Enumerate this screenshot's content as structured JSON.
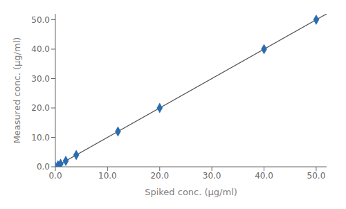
{
  "chart_data": {
    "type": "scatter",
    "xlabel": "Spiked conc. (μg/ml)",
    "ylabel": "Measured conc. (μg/ml)",
    "series": [
      {
        "type": "line",
        "color": "#555555",
        "x": [
          0.0,
          52.0
        ],
        "values": [
          0.0,
          52.0
        ]
      },
      {
        "type": "scatter",
        "color": "#2b6cb0",
        "marker": "diamond",
        "x": [
          0.0,
          0.5,
          1.0,
          2.0,
          4.0,
          12.0,
          20.0,
          40.0,
          50.0
        ],
        "values": [
          0.0,
          0.5,
          1.0,
          2.0,
          4.0,
          12.0,
          20.0,
          40.0,
          50.0
        ]
      }
    ],
    "xlim": [
      0.0,
      52.0
    ],
    "ylim": [
      0.0,
      52.0
    ],
    "xticks": [
      {
        "value": 0,
        "label": "0.0"
      },
      {
        "value": 10,
        "label": "10.0"
      },
      {
        "value": 20,
        "label": "20.0"
      },
      {
        "value": 30,
        "label": "30.0"
      },
      {
        "value": 40,
        "label": "40.0"
      },
      {
        "value": 50,
        "label": "50.0"
      }
    ],
    "yticks": [
      {
        "value": 0,
        "label": "0.0"
      },
      {
        "value": 10,
        "label": "10.0"
      },
      {
        "value": 20,
        "label": "20.0"
      },
      {
        "value": 30,
        "label": "30.0"
      },
      {
        "value": 40,
        "label": "40.0"
      },
      {
        "value": 50,
        "label": "50.0"
      }
    ],
    "grid": false
  }
}
